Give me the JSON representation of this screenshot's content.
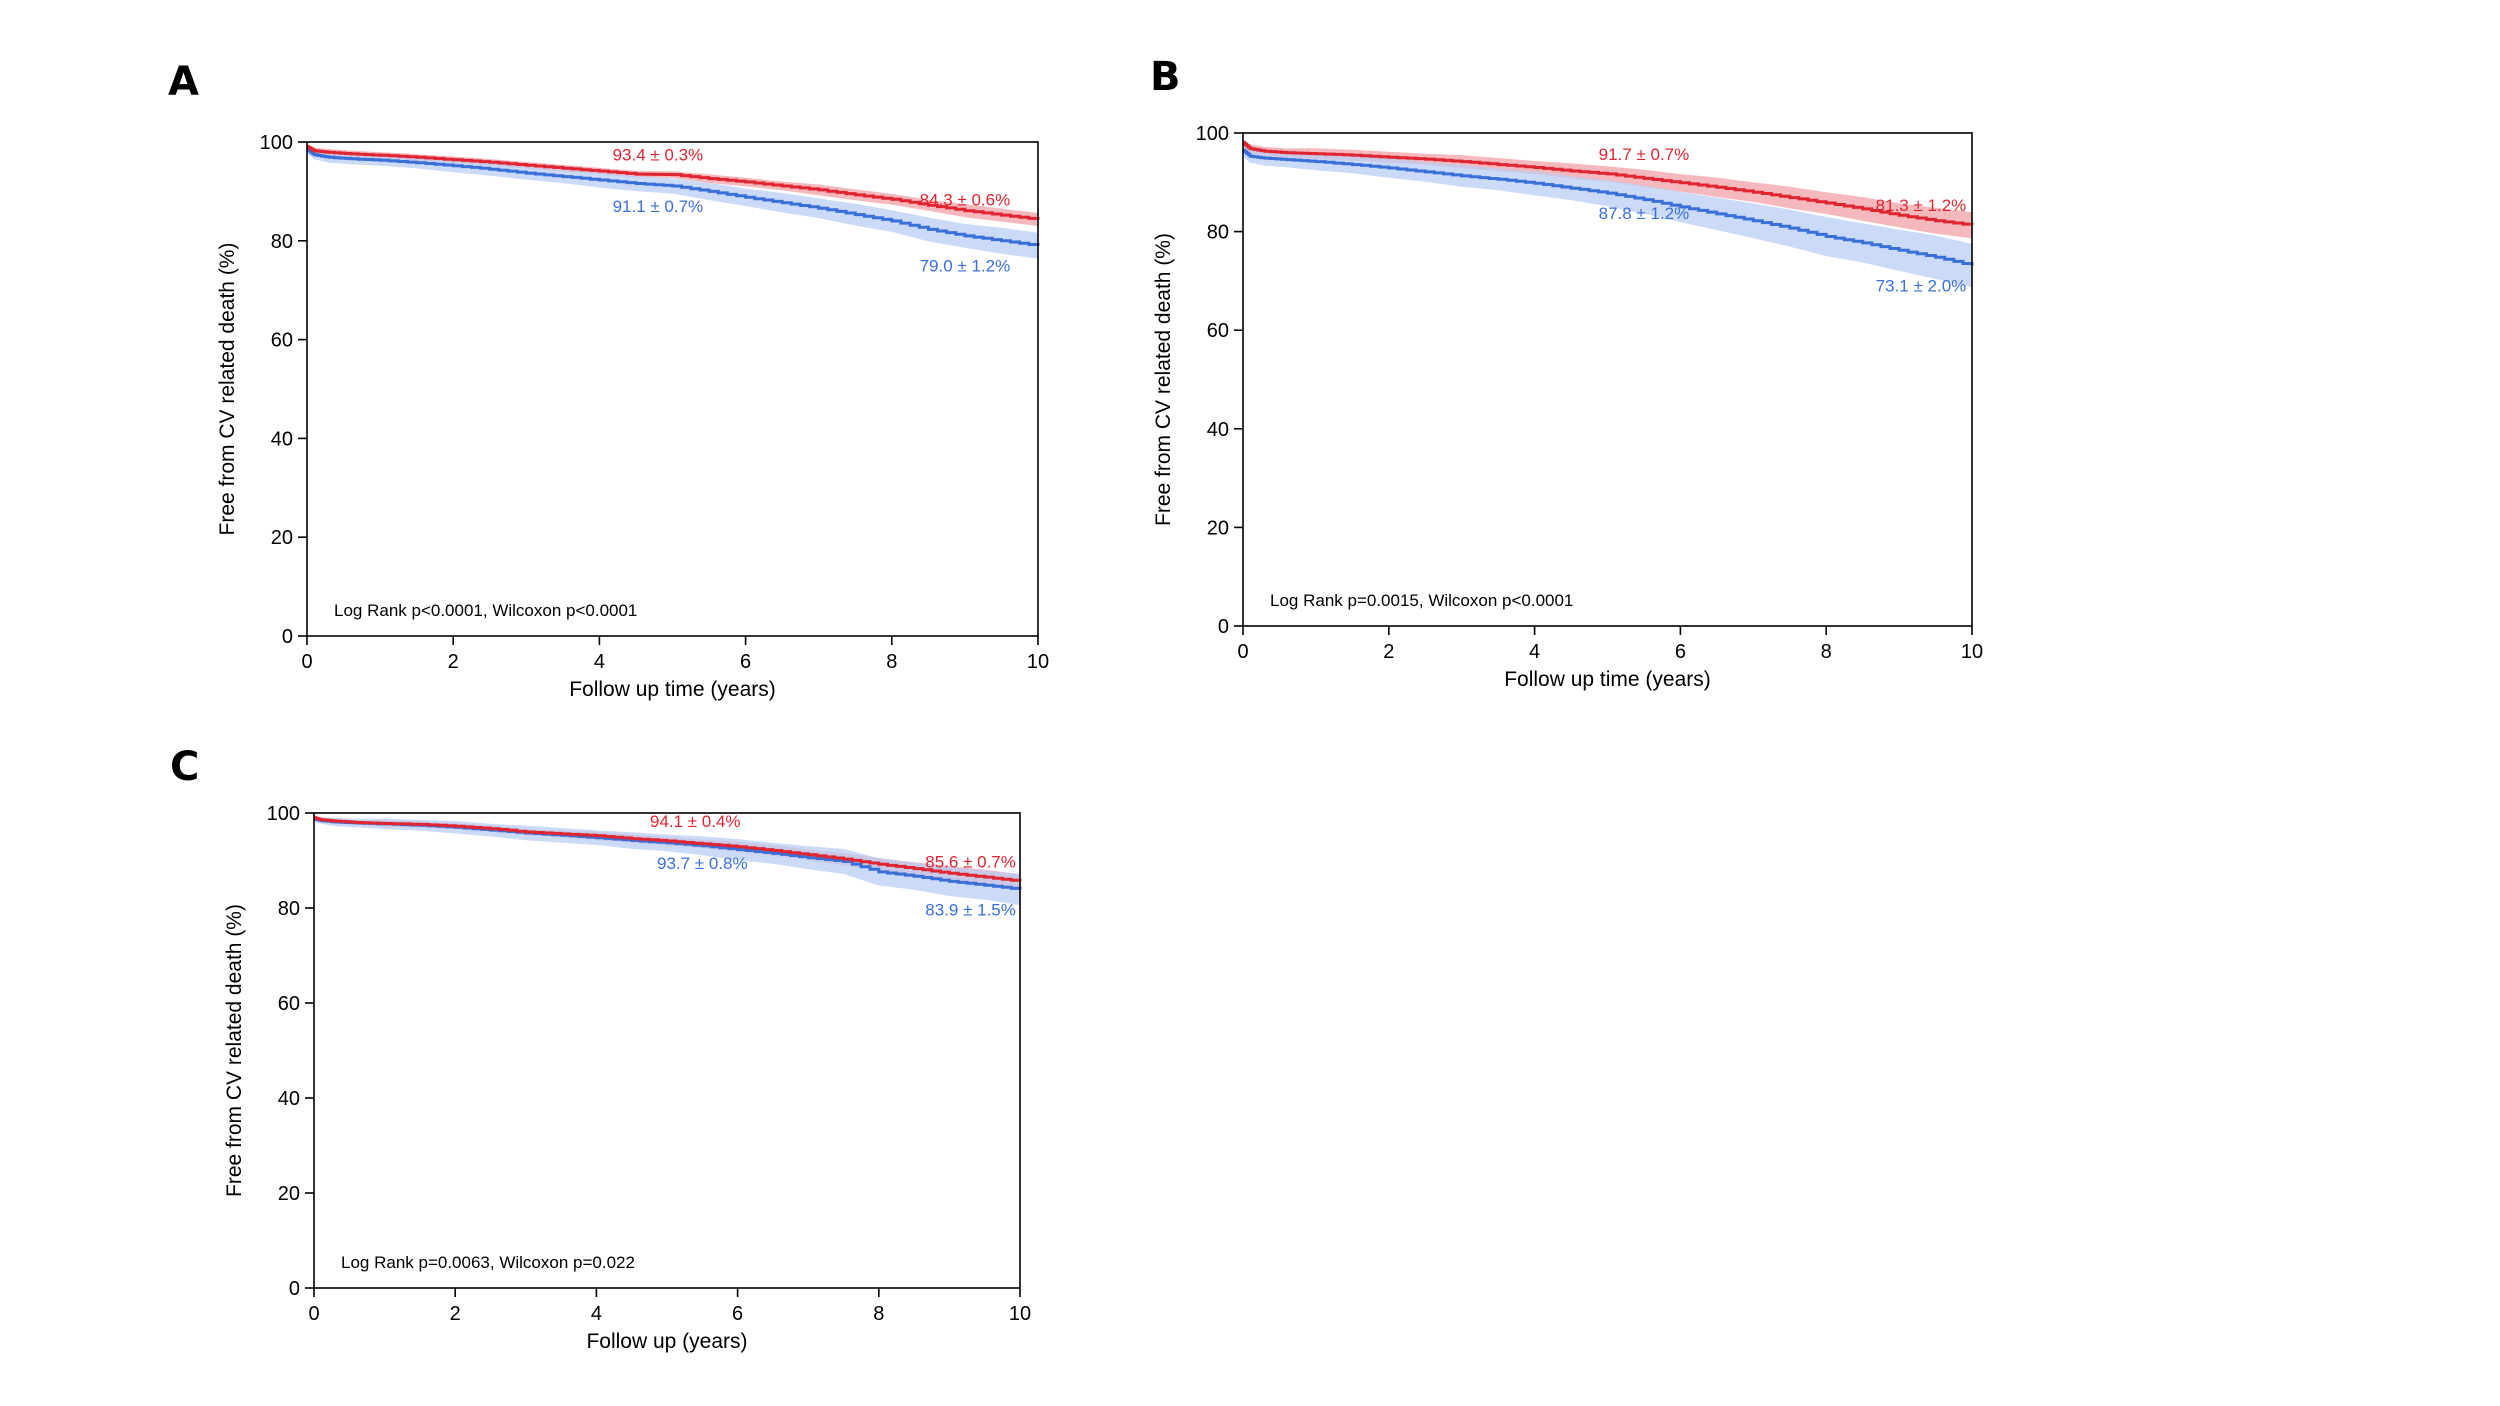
{
  "chart_data": [
    {
      "id": "A",
      "type": "line",
      "panel_label": "A",
      "xlabel": "Follow up time (years)",
      "ylabel": "Free from CV related death (%)",
      "xlim": [
        0,
        10
      ],
      "ylim": [
        0,
        100
      ],
      "xticks": [
        "0",
        "2",
        "4",
        "6",
        "8",
        "10"
      ],
      "yticks": [
        "0",
        "20",
        "40",
        "60",
        "80",
        "100"
      ],
      "stat_text": "Log Rank p<0.0001, Wilcoxon p<0.0001",
      "series": [
        {
          "name": "group-red",
          "color": "#e02532",
          "band_color": "#f2a1a7",
          "x": [
            0,
            0.1,
            0.3,
            0.6,
            1,
            1.5,
            2,
            2.5,
            3,
            3.5,
            4,
            4.5,
            5,
            5.5,
            6,
            6.5,
            7,
            7.5,
            8,
            8.5,
            9,
            9.5,
            10
          ],
          "y": [
            99,
            98.2,
            97.9,
            97.6,
            97.3,
            96.9,
            96.4,
            95.9,
            95.3,
            94.7,
            94.1,
            93.5,
            93.4,
            92.6,
            91.9,
            91.1,
            90.3,
            89.3,
            88.4,
            87.2,
            86.1,
            85.2,
            84.3
          ],
          "ci": [
            0.3,
            0.3,
            0.3,
            0.3,
            0.3,
            0.3,
            0.3,
            0.3,
            0.3,
            0.3,
            0.3,
            0.3,
            0.3,
            0.4,
            0.4,
            0.4,
            0.5,
            0.5,
            0.5,
            0.5,
            0.6,
            0.6,
            0.6
          ],
          "annotations": [
            {
              "x": 4.8,
              "y": 93.4,
              "text": "93.4 ± 0.3%"
            },
            {
              "x": 9.0,
              "y": 84.3,
              "text": "84.3 ± 0.6%"
            }
          ]
        },
        {
          "name": "group-blue",
          "color": "#3b6fd8",
          "band_color": "#b9cdf4",
          "x": [
            0,
            0.1,
            0.3,
            0.6,
            1,
            1.5,
            2,
            2.5,
            3,
            3.5,
            4,
            4.5,
            5,
            5.5,
            6,
            6.5,
            7,
            7.5,
            8,
            8.5,
            9,
            9.5,
            10
          ],
          "y": [
            98.5,
            97.4,
            96.9,
            96.6,
            96.3,
            95.8,
            95.2,
            94.5,
            93.7,
            93.0,
            92.3,
            91.6,
            91.1,
            90.0,
            88.8,
            87.7,
            86.6,
            85.3,
            84.0,
            82.3,
            81.0,
            80.0,
            79.0
          ],
          "ci": [
            0.4,
            0.4,
            0.5,
            0.5,
            0.5,
            0.5,
            0.6,
            0.6,
            0.6,
            0.6,
            0.7,
            0.7,
            0.7,
            0.8,
            0.8,
            0.9,
            0.9,
            1.0,
            1.0,
            1.1,
            1.1,
            1.2,
            1.2
          ],
          "annotations": [
            {
              "x": 4.8,
              "y": 91.1,
              "text": "91.1 ± 0.7%"
            },
            {
              "x": 9.0,
              "y": 79.0,
              "text": "79.0 ± 1.2%"
            }
          ]
        }
      ]
    },
    {
      "id": "B",
      "type": "line",
      "panel_label": "B",
      "xlabel": "Follow up time (years)",
      "ylabel": "Free from CV related death (%)",
      "xlim": [
        0,
        10
      ],
      "ylim": [
        0,
        100
      ],
      "xticks": [
        "0",
        "2",
        "4",
        "6",
        "8",
        "10"
      ],
      "yticks": [
        "0",
        "20",
        "40",
        "60",
        "80",
        "100"
      ],
      "stat_text": "Log Rank p=0.0015, Wilcoxon p<0.0001",
      "series": [
        {
          "name": "group-red",
          "color": "#e02532",
          "band_color": "#f2a1a7",
          "x": [
            0,
            0.1,
            0.3,
            0.6,
            1,
            1.5,
            2,
            2.5,
            3,
            3.5,
            4,
            4.5,
            5,
            5.5,
            6,
            6.5,
            7,
            7.5,
            8,
            8.5,
            9,
            9.5,
            10
          ],
          "y": [
            98,
            96.8,
            96.3,
            96.0,
            95.8,
            95.5,
            95.1,
            94.7,
            94.2,
            93.6,
            93.0,
            92.3,
            91.7,
            90.8,
            89.9,
            89.0,
            88.0,
            86.9,
            85.8,
            84.6,
            83.3,
            82.2,
            81.3
          ],
          "ci": [
            0.4,
            0.4,
            0.4,
            0.4,
            0.5,
            0.5,
            0.5,
            0.5,
            0.6,
            0.6,
            0.6,
            0.7,
            0.7,
            0.8,
            0.8,
            0.9,
            0.9,
            1.0,
            1.0,
            1.1,
            1.1,
            1.2,
            1.2
          ],
          "annotations": [
            {
              "x": 5.5,
              "y": 91.7,
              "text": "91.7 ± 0.7%"
            },
            {
              "x": 9.3,
              "y": 81.3,
              "text": "81.3 ± 1.2%"
            }
          ]
        },
        {
          "name": "group-blue",
          "color": "#3b6fd8",
          "band_color": "#b9cdf4",
          "x": [
            0,
            0.1,
            0.3,
            0.6,
            1,
            1.5,
            2,
            2.5,
            3,
            3.5,
            4,
            4.5,
            5,
            5.5,
            6,
            6.5,
            7,
            7.5,
            8,
            8.5,
            9,
            9.5,
            10
          ],
          "y": [
            96.5,
            95.3,
            94.9,
            94.6,
            94.2,
            93.6,
            92.9,
            92.1,
            91.3,
            90.6,
            89.8,
            88.8,
            87.8,
            86.5,
            85.0,
            83.6,
            82.2,
            80.7,
            79.0,
            77.7,
            76.2,
            74.8,
            73.1
          ],
          "ci": [
            0.6,
            0.6,
            0.7,
            0.7,
            0.8,
            0.8,
            0.9,
            0.9,
            1.0,
            1.0,
            1.1,
            1.1,
            1.2,
            1.3,
            1.4,
            1.5,
            1.6,
            1.7,
            1.8,
            1.8,
            1.9,
            2.0,
            2.0
          ],
          "annotations": [
            {
              "x": 5.5,
              "y": 87.8,
              "text": "87.8 ± 1.2%"
            },
            {
              "x": 9.3,
              "y": 73.1,
              "text": "73.1 ± 2.0%"
            }
          ]
        }
      ]
    },
    {
      "id": "C",
      "type": "line",
      "panel_label": "C",
      "xlabel": "Follow up (years)",
      "ylabel": "Free from CV related death (%)",
      "xlim": [
        0,
        10
      ],
      "ylim": [
        0,
        100
      ],
      "xticks": [
        "0",
        "2",
        "4",
        "6",
        "8",
        "10"
      ],
      "yticks": [
        "0",
        "20",
        "40",
        "60",
        "80",
        "100"
      ],
      "stat_text": "Log Rank p=0.0063, Wilcoxon p=0.022",
      "series": [
        {
          "name": "group-red",
          "color": "#e02532",
          "band_color": "#f2a1a7",
          "x": [
            0,
            0.1,
            0.3,
            0.6,
            1,
            1.5,
            2,
            2.5,
            3,
            3.5,
            4,
            4.5,
            5,
            5.5,
            6,
            6.5,
            7,
            7.5,
            8,
            8.5,
            9,
            9.5,
            10
          ],
          "y": [
            99,
            98.6,
            98.3,
            98.0,
            97.8,
            97.6,
            97.2,
            96.7,
            96.0,
            95.6,
            95.2,
            94.6,
            94.1,
            93.5,
            92.9,
            92.1,
            91.2,
            90.3,
            89.2,
            88.3,
            87.3,
            86.5,
            85.6
          ],
          "ci": [
            0.2,
            0.2,
            0.2,
            0.2,
            0.3,
            0.3,
            0.3,
            0.3,
            0.3,
            0.3,
            0.4,
            0.4,
            0.4,
            0.4,
            0.5,
            0.5,
            0.5,
            0.6,
            0.6,
            0.6,
            0.7,
            0.7,
            0.7
          ],
          "annotations": [
            {
              "x": 5.4,
              "y": 94.1,
              "text": "94.1 ± 0.4%"
            },
            {
              "x": 9.3,
              "y": 85.6,
              "text": "85.6 ± 0.7%"
            }
          ]
        },
        {
          "name": "group-blue",
          "color": "#3b6fd8",
          "band_color": "#b9cdf4",
          "x": [
            0,
            0.1,
            0.3,
            0.6,
            1,
            1.5,
            2,
            2.5,
            3,
            3.5,
            4,
            4.5,
            5,
            5.5,
            6,
            6.5,
            7,
            7.5,
            8,
            8.5,
            9,
            9.5,
            10
          ],
          "y": [
            98.8,
            98.4,
            98.1,
            97.9,
            97.7,
            97.4,
            97.0,
            96.4,
            95.8,
            95.3,
            94.8,
            94.2,
            93.7,
            93.1,
            92.3,
            91.5,
            90.6,
            89.8,
            87.6,
            86.7,
            85.6,
            84.8,
            83.9
          ],
          "ci": [
            0.3,
            0.3,
            0.4,
            0.4,
            0.5,
            0.5,
            0.6,
            0.6,
            0.7,
            0.7,
            0.7,
            0.8,
            0.8,
            0.9,
            1.0,
            1.0,
            1.1,
            1.2,
            1.3,
            1.3,
            1.4,
            1.4,
            1.5
          ],
          "annotations": [
            {
              "x": 5.5,
              "y": 93.7,
              "text": "93.7 ± 0.8%"
            },
            {
              "x": 9.3,
              "y": 83.9,
              "text": "83.9 ± 1.5%"
            }
          ]
        }
      ]
    }
  ]
}
